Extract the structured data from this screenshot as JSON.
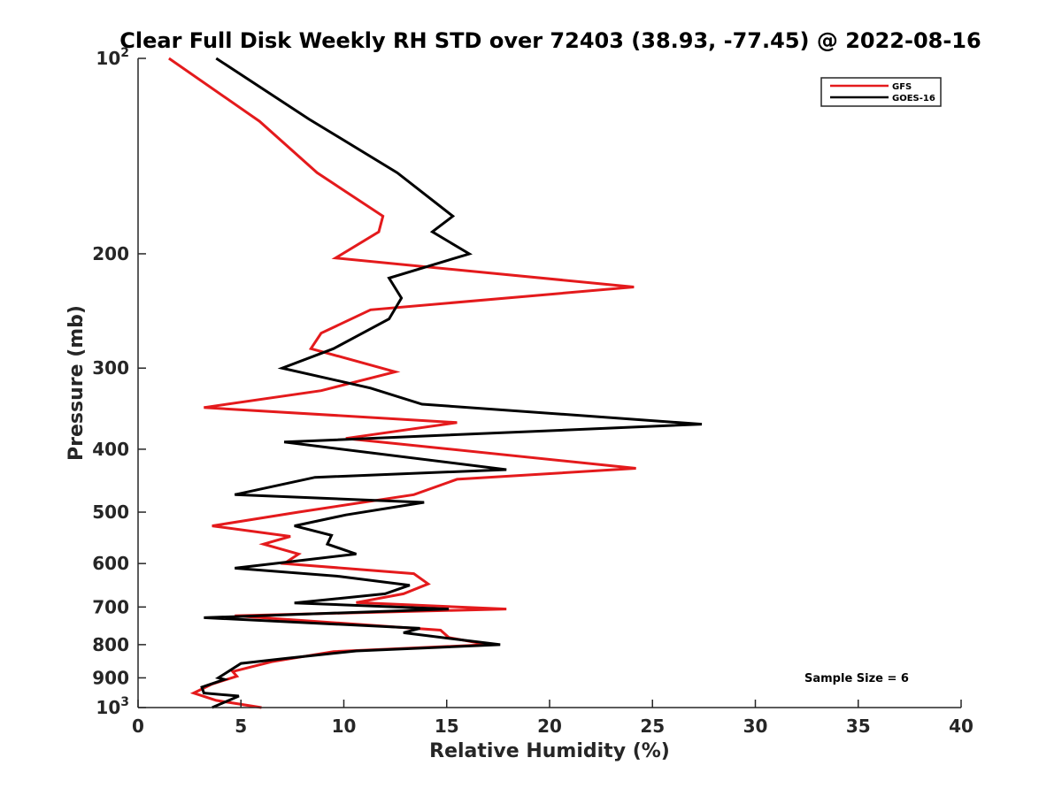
{
  "chart_data": {
    "type": "line",
    "title": "Clear Full Disk Weekly RH STD over 72403 (38.93, -77.45) @ 2022-08-16",
    "xlabel": "Relative Humidity (%)",
    "ylabel": "Pressure (mb)",
    "xlim": [
      0,
      40
    ],
    "ylim": [
      100,
      1000
    ],
    "y_scale": "log",
    "y_reversed": true,
    "grid": false,
    "legend_position": "top-right",
    "x_ticks": [
      {
        "value": 0,
        "label": "0"
      },
      {
        "value": 5,
        "label": "5"
      },
      {
        "value": 10,
        "label": "10"
      },
      {
        "value": 15,
        "label": "15"
      },
      {
        "value": 20,
        "label": "20"
      },
      {
        "value": 25,
        "label": "25"
      },
      {
        "value": 30,
        "label": "30"
      },
      {
        "value": 35,
        "label": "35"
      },
      {
        "value": 40,
        "label": "40"
      }
    ],
    "y_ticks": [
      {
        "value": 100,
        "base": "10",
        "exp": "2"
      },
      {
        "value": 200,
        "base": "200",
        "exp": ""
      },
      {
        "value": 300,
        "base": "300",
        "exp": ""
      },
      {
        "value": 400,
        "base": "400",
        "exp": ""
      },
      {
        "value": 500,
        "base": "500",
        "exp": ""
      },
      {
        "value": 600,
        "base": "600",
        "exp": ""
      },
      {
        "value": 700,
        "base": "700",
        "exp": ""
      },
      {
        "value": 800,
        "base": "800",
        "exp": ""
      },
      {
        "value": 900,
        "base": "900",
        "exp": ""
      },
      {
        "value": 1000,
        "base": "10",
        "exp": "3"
      }
    ],
    "series": [
      {
        "name": "GFS",
        "color": "#e41a1c",
        "points": [
          [
            1.5,
            100
          ],
          [
            5.9,
            125
          ],
          [
            8.7,
            150
          ],
          [
            11.9,
            175
          ],
          [
            11.7,
            185
          ],
          [
            9.6,
            203
          ],
          [
            24.1,
            225
          ],
          [
            11.3,
            244
          ],
          [
            8.9,
            265
          ],
          [
            8.4,
            280
          ],
          [
            12.5,
            304
          ],
          [
            8.9,
            325
          ],
          [
            3.2,
            345
          ],
          [
            15.5,
            364
          ],
          [
            10.1,
            385
          ],
          [
            24.2,
            428
          ],
          [
            15.5,
            445
          ],
          [
            13.4,
            470
          ],
          [
            7.8,
            500
          ],
          [
            3.6,
            525
          ],
          [
            7.4,
            545
          ],
          [
            6.1,
            560
          ],
          [
            7.8,
            580
          ],
          [
            7.1,
            600
          ],
          [
            13.4,
            622
          ],
          [
            14.1,
            645
          ],
          [
            12.9,
            668
          ],
          [
            10.6,
            689
          ],
          [
            17.9,
            705
          ],
          [
            4.7,
            722
          ],
          [
            14.7,
            760
          ],
          [
            15.1,
            780
          ],
          [
            17.0,
            800
          ],
          [
            9.5,
            820
          ],
          [
            6.5,
            850
          ],
          [
            4.6,
            880
          ],
          [
            4.8,
            895
          ],
          [
            3.6,
            920
          ],
          [
            2.7,
            950
          ],
          [
            3.8,
            975
          ],
          [
            6.0,
            1000
          ]
        ]
      },
      {
        "name": "GOES-16",
        "color": "#000000",
        "points": [
          [
            3.8,
            100
          ],
          [
            8.3,
            124
          ],
          [
            12.6,
            150
          ],
          [
            15.3,
            175
          ],
          [
            14.3,
            185
          ],
          [
            16.1,
            200
          ],
          [
            12.2,
            218
          ],
          [
            12.8,
            234
          ],
          [
            12.2,
            252
          ],
          [
            9.5,
            280
          ],
          [
            7.0,
            300
          ],
          [
            11.3,
            322
          ],
          [
            13.8,
            341
          ],
          [
            27.4,
            366
          ],
          [
            7.1,
            390
          ],
          [
            17.9,
            430
          ],
          [
            8.6,
            442
          ],
          [
            4.7,
            470
          ],
          [
            13.9,
            483
          ],
          [
            10.1,
            505
          ],
          [
            7.6,
            525
          ],
          [
            9.4,
            543
          ],
          [
            9.2,
            560
          ],
          [
            10.6,
            580
          ],
          [
            4.7,
            610
          ],
          [
            9.8,
            628
          ],
          [
            13.2,
            648
          ],
          [
            12.0,
            668
          ],
          [
            7.6,
            690
          ],
          [
            15.1,
            705
          ],
          [
            3.2,
            727
          ],
          [
            13.7,
            755
          ],
          [
            12.9,
            767
          ],
          [
            17.6,
            800
          ],
          [
            10.6,
            818
          ],
          [
            7.2,
            840
          ],
          [
            5.0,
            855
          ],
          [
            3.9,
            900
          ],
          [
            4.2,
            905
          ],
          [
            3.1,
            930
          ],
          [
            3.2,
            950
          ],
          [
            4.9,
            960
          ],
          [
            3.6,
            1000
          ]
        ]
      }
    ],
    "annotation": "Sample Size = 6"
  }
}
